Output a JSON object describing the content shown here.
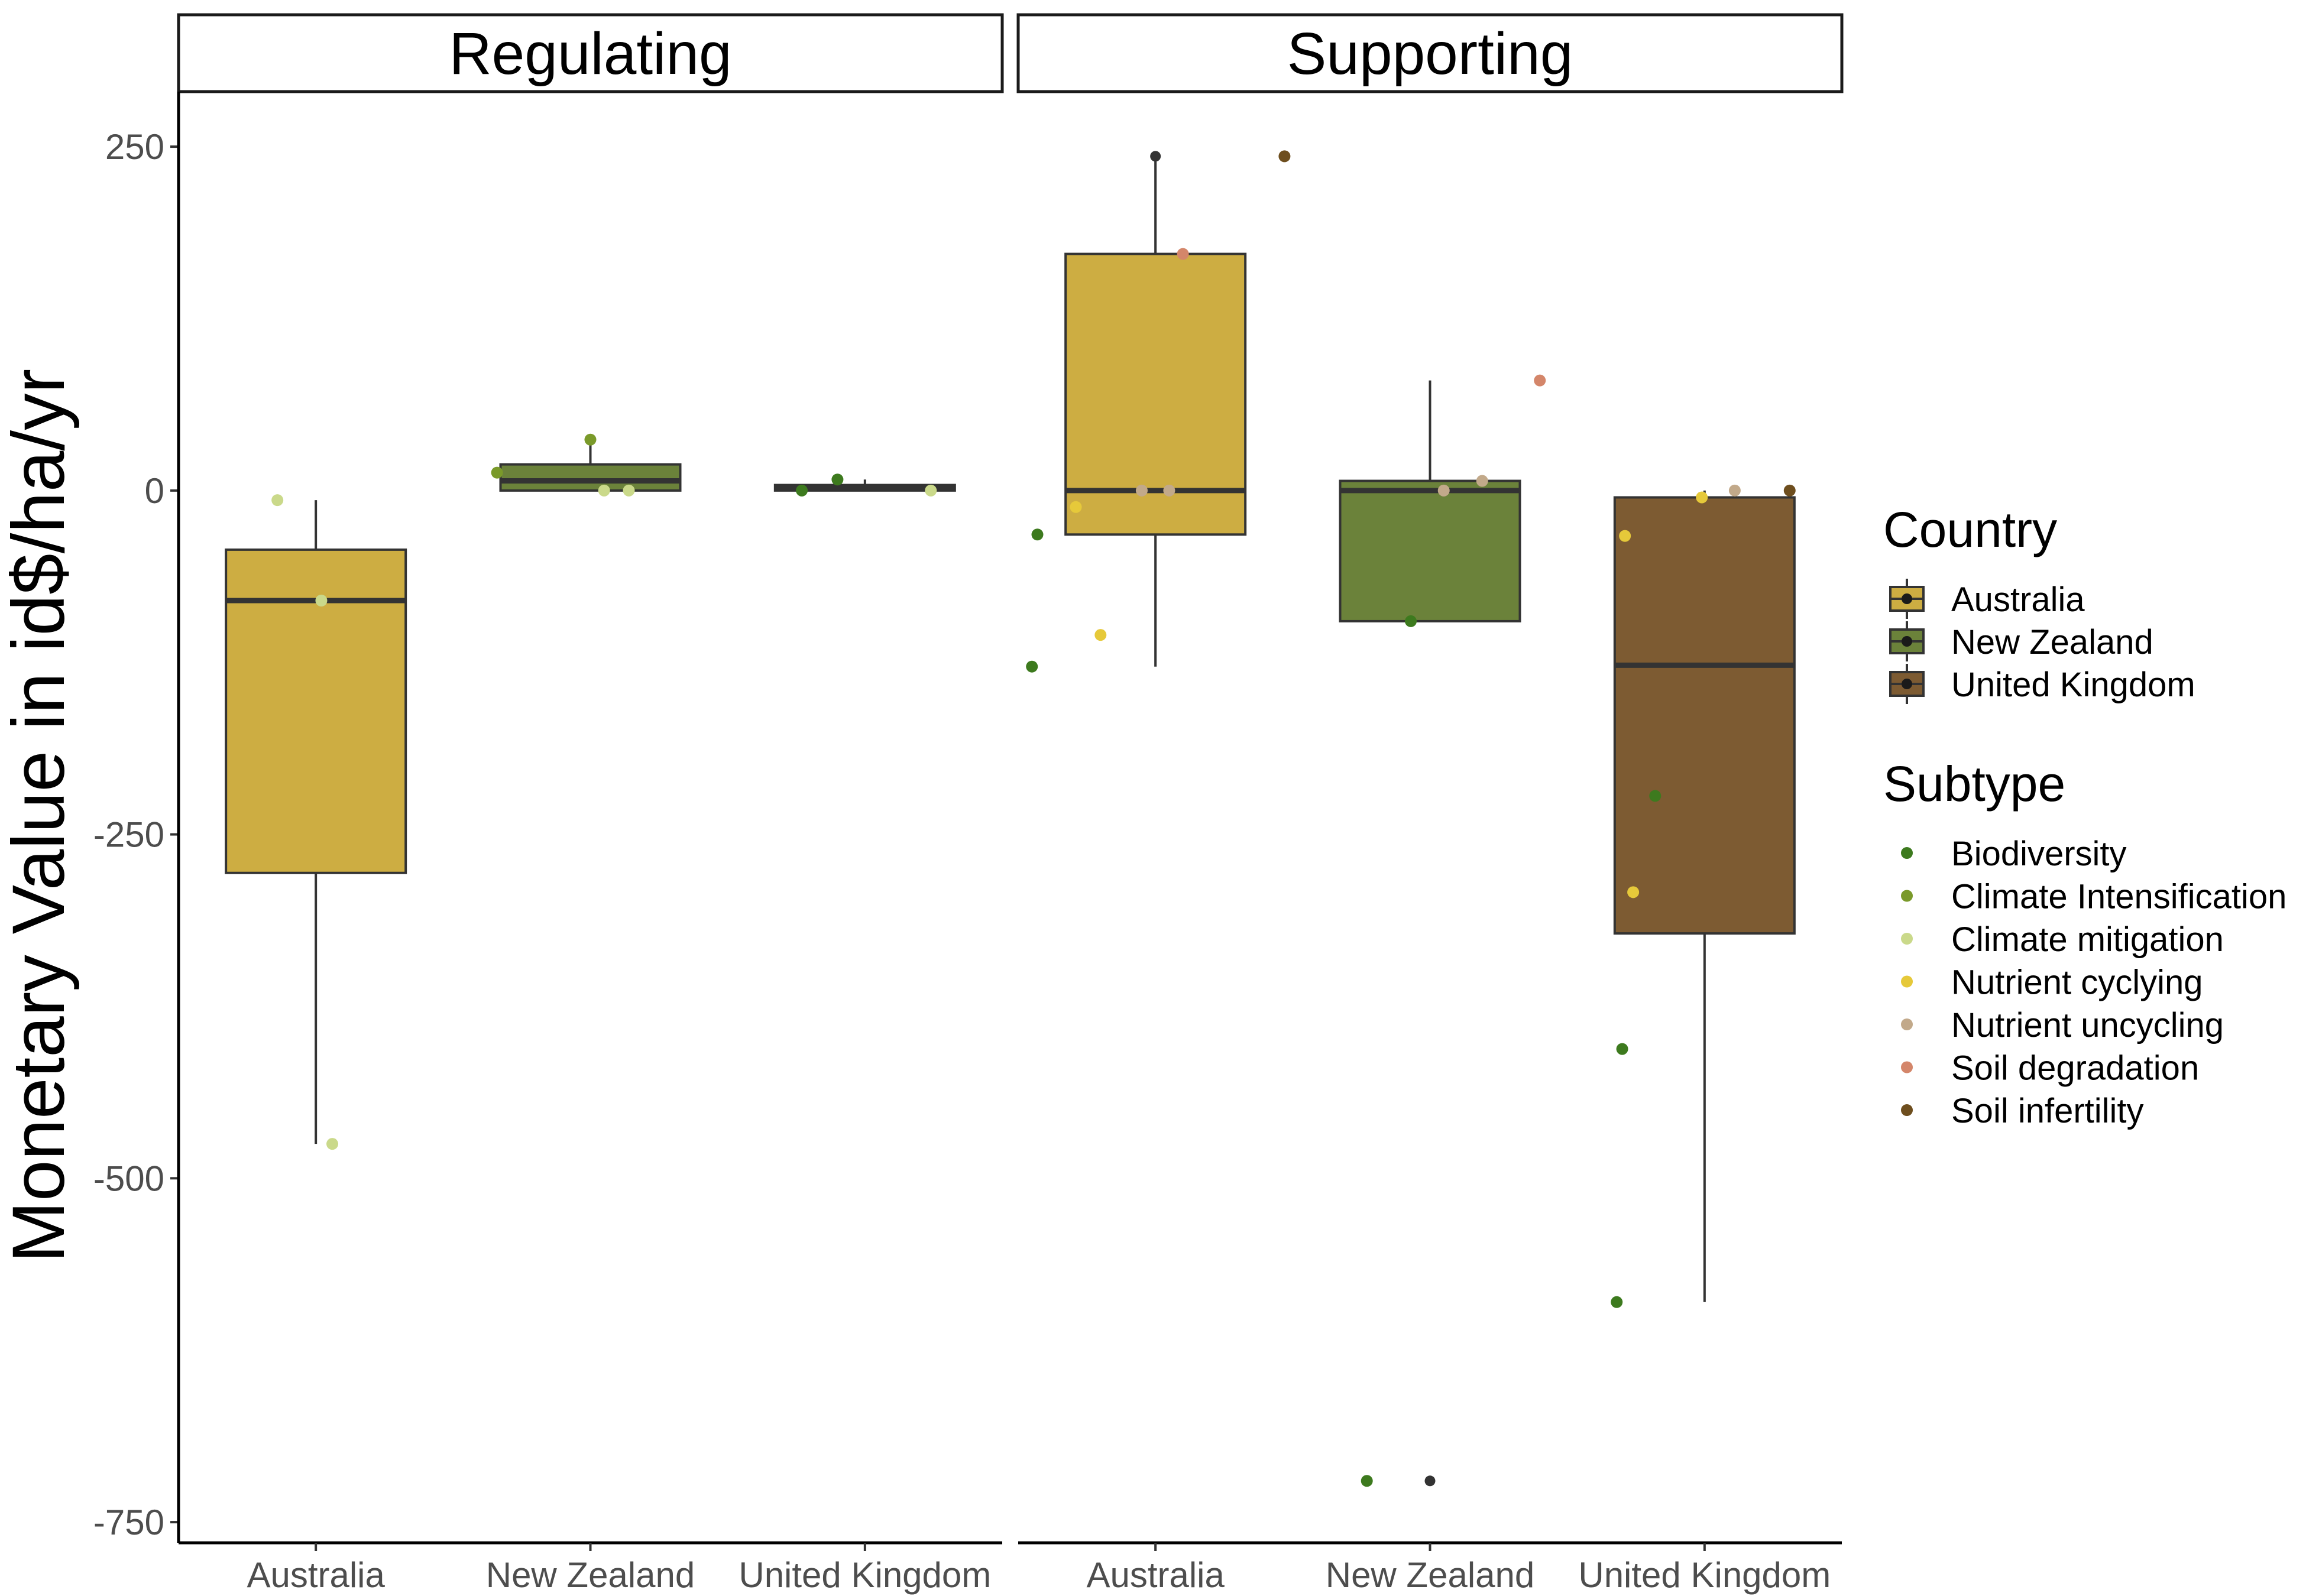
{
  "chart_data": {
    "type": "box",
    "ylabel": "Monetary Value in id$/ha/yr",
    "xlabel": "",
    "facets": [
      "Regulating",
      "Supporting"
    ],
    "categories": [
      "Australia",
      "New Zealand",
      "United Kingdom"
    ],
    "y_ticks": [
      250,
      0,
      -250,
      -500,
      -750
    ],
    "ylim": [
      -765,
      290
    ],
    "grid": false,
    "legend_position": "right",
    "country_colors": {
      "Australia": "#CDAD42",
      "New Zealand": "#6B823A",
      "United Kingdom": "#7D5B32"
    },
    "legends": {
      "country_title": "Country",
      "subtype_title": "Subtype",
      "countries": [
        "Australia",
        "New Zealand",
        "United Kingdom"
      ],
      "subtypes": [
        {
          "name": "Biodiversity",
          "color": "#3D7A1E"
        },
        {
          "name": "Climate Intensification",
          "color": "#7A9A2A"
        },
        {
          "name": "Climate mitigation",
          "color": "#CAD98A"
        },
        {
          "name": "Nutrient cyclying",
          "color": "#E6C93A"
        },
        {
          "name": "Nutrient uncycling",
          "color": "#C2A98A"
        },
        {
          "name": "Soil degradation",
          "color": "#D4866A"
        },
        {
          "name": "Soil infertility",
          "color": "#6E4E1E"
        }
      ]
    },
    "boxes": [
      {
        "facet": "Regulating",
        "country": "Australia",
        "lower_whisker": -475,
        "q1": -278,
        "median": -80,
        "q3": -43,
        "upper_whisker": -7
      },
      {
        "facet": "Regulating",
        "country": "New Zealand",
        "lower_whisker": 0,
        "q1": 0,
        "median": 7,
        "q3": 19,
        "upper_whisker": 37
      },
      {
        "facet": "Regulating",
        "country": "United Kingdom",
        "lower_whisker": 0,
        "q1": 0,
        "median": 2,
        "q3": 4,
        "upper_whisker": 8
      },
      {
        "facet": "Supporting",
        "country": "Australia",
        "lower_whisker": -128,
        "q1": -32,
        "median": 0,
        "q3": 172,
        "upper_whisker": 243
      },
      {
        "facet": "Supporting",
        "country": "New Zealand",
        "lower_whisker": -95,
        "q1": -95,
        "median": 0,
        "q3": 7,
        "upper_whisker": 80
      },
      {
        "facet": "Supporting",
        "country": "United Kingdom",
        "lower_whisker": -590,
        "q1": -322,
        "median": -127,
        "q3": -5,
        "upper_whisker": 0
      }
    ],
    "outliers": [
      {
        "facet": "Supporting",
        "country": "Australia",
        "value": 243
      },
      {
        "facet": "Supporting",
        "country": "New Zealand",
        "value": -720
      }
    ],
    "points": [
      {
        "facet": "Regulating",
        "country": "Australia",
        "subtype": "Climate mitigation",
        "value": -7,
        "jitter": -0.14
      },
      {
        "facet": "Regulating",
        "country": "Australia",
        "subtype": "Climate mitigation",
        "value": -80,
        "jitter": 0.02
      },
      {
        "facet": "Regulating",
        "country": "Australia",
        "subtype": "Climate mitigation",
        "value": -475,
        "jitter": 0.06
      },
      {
        "facet": "Regulating",
        "country": "New Zealand",
        "subtype": "Climate Intensification",
        "value": 37,
        "jitter": 0.0
      },
      {
        "facet": "Regulating",
        "country": "New Zealand",
        "subtype": "Climate Intensification",
        "value": 13,
        "jitter": -0.34
      },
      {
        "facet": "Regulating",
        "country": "New Zealand",
        "subtype": "Climate mitigation",
        "value": 0,
        "jitter": 0.05
      },
      {
        "facet": "Regulating",
        "country": "New Zealand",
        "subtype": "Climate mitigation",
        "value": 0,
        "jitter": 0.14
      },
      {
        "facet": "Regulating",
        "country": "United Kingdom",
        "subtype": "Biodiversity",
        "value": 8,
        "jitter": -0.1
      },
      {
        "facet": "Regulating",
        "country": "United Kingdom",
        "subtype": "Biodiversity",
        "value": 0,
        "jitter": -0.23
      },
      {
        "facet": "Regulating",
        "country": "United Kingdom",
        "subtype": "Climate mitigation",
        "value": 0,
        "jitter": 0.24
      },
      {
        "facet": "Supporting",
        "country": "Australia",
        "subtype": "Biodiversity",
        "value": -32,
        "jitter": -0.43
      },
      {
        "facet": "Supporting",
        "country": "Australia",
        "subtype": "Biodiversity",
        "value": -128,
        "jitter": -0.45
      },
      {
        "facet": "Supporting",
        "country": "Australia",
        "subtype": "Nutrient cyclying",
        "value": -12,
        "jitter": -0.29
      },
      {
        "facet": "Supporting",
        "country": "Australia",
        "subtype": "Nutrient cyclying",
        "value": -105,
        "jitter": -0.2
      },
      {
        "facet": "Supporting",
        "country": "Australia",
        "subtype": "Nutrient uncycling",
        "value": 0,
        "jitter": -0.05
      },
      {
        "facet": "Supporting",
        "country": "Australia",
        "subtype": "Nutrient uncycling",
        "value": 0,
        "jitter": 0.05
      },
      {
        "facet": "Supporting",
        "country": "Australia",
        "subtype": "Soil degradation",
        "value": 172,
        "jitter": 0.1
      },
      {
        "facet": "Supporting",
        "country": "Australia",
        "subtype": "Soil infertility",
        "value": 243,
        "jitter": 0.47
      },
      {
        "facet": "Supporting",
        "country": "New Zealand",
        "subtype": "Biodiversity",
        "value": -95,
        "jitter": -0.07
      },
      {
        "facet": "Supporting",
        "country": "New Zealand",
        "subtype": "Biodiversity",
        "value": -720,
        "jitter": -0.23
      },
      {
        "facet": "Supporting",
        "country": "New Zealand",
        "subtype": "Nutrient uncycling",
        "value": 0,
        "jitter": 0.05
      },
      {
        "facet": "Supporting",
        "country": "New Zealand",
        "subtype": "Nutrient uncycling",
        "value": 7,
        "jitter": 0.19
      },
      {
        "facet": "Supporting",
        "country": "New Zealand",
        "subtype": "Soil degradation",
        "value": 80,
        "jitter": 0.4
      },
      {
        "facet": "Supporting",
        "country": "United Kingdom",
        "subtype": "Biodiversity",
        "value": -222,
        "jitter": -0.18
      },
      {
        "facet": "Supporting",
        "country": "United Kingdom",
        "subtype": "Biodiversity",
        "value": -406,
        "jitter": -0.3
      },
      {
        "facet": "Supporting",
        "country": "United Kingdom",
        "subtype": "Biodiversity",
        "value": -590,
        "jitter": -0.32
      },
      {
        "facet": "Supporting",
        "country": "United Kingdom",
        "subtype": "Nutrient cyclying",
        "value": -33,
        "jitter": -0.29
      },
      {
        "facet": "Supporting",
        "country": "United Kingdom",
        "subtype": "Nutrient cyclying",
        "value": -292,
        "jitter": -0.26
      },
      {
        "facet": "Supporting",
        "country": "United Kingdom",
        "subtype": "Nutrient cyclying",
        "value": -5,
        "jitter": -0.01
      },
      {
        "facet": "Supporting",
        "country": "United Kingdom",
        "subtype": "Nutrient uncycling",
        "value": 0,
        "jitter": 0.11
      },
      {
        "facet": "Supporting",
        "country": "United Kingdom",
        "subtype": "Soil infertility",
        "value": 0,
        "jitter": 0.31
      }
    ]
  }
}
